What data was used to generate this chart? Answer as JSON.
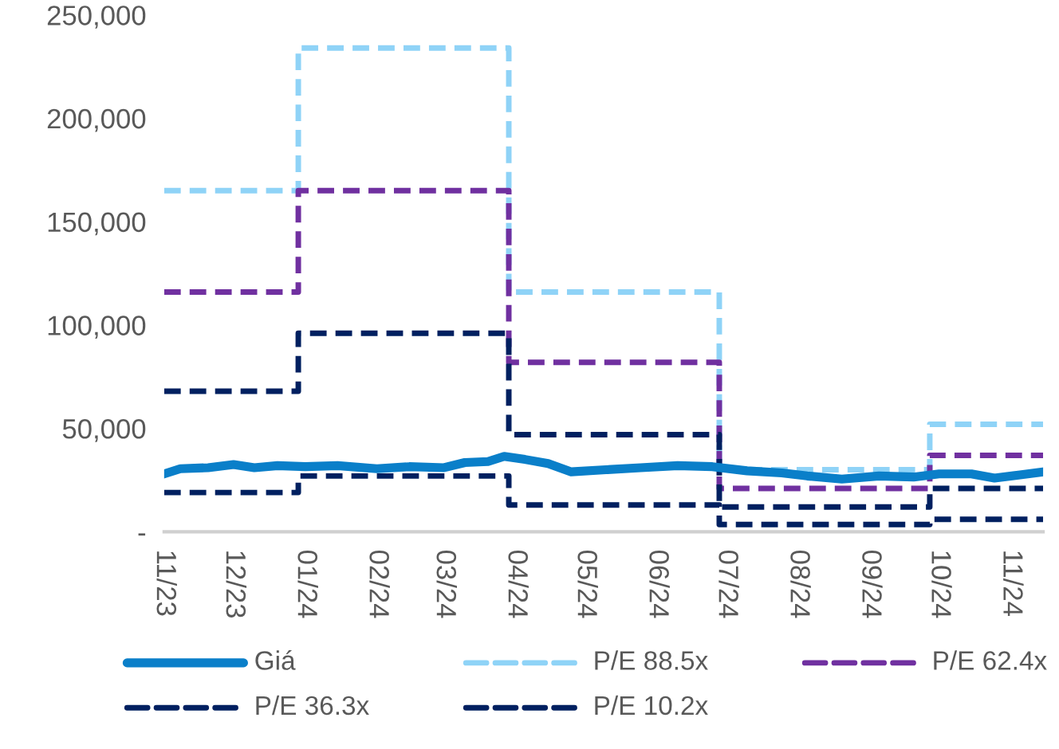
{
  "chart_data": {
    "type": "line",
    "legend": "bottom",
    "grid": false,
    "xlim": [
      "2023-11-01",
      "2024-11-15"
    ],
    "ylim": [
      0,
      250000
    ],
    "yticks": [
      {
        "value": 0,
        "label": "-"
      },
      {
        "value": 50000,
        "label": "50,000"
      },
      {
        "value": 100000,
        "label": "100,000"
      },
      {
        "value": 150000,
        "label": "150,000"
      },
      {
        "value": 200000,
        "label": "200,000"
      },
      {
        "value": 250000,
        "label": "250,000"
      }
    ],
    "xticks": [
      {
        "value": "2023-11-01",
        "label": "11/23"
      },
      {
        "value": "2023-12-01",
        "label": "12/23"
      },
      {
        "value": "2024-01-01",
        "label": "01/24"
      },
      {
        "value": "2024-02-01",
        "label": "02/24"
      },
      {
        "value": "2024-03-01",
        "label": "03/24"
      },
      {
        "value": "2024-04-01",
        "label": "04/24"
      },
      {
        "value": "2024-05-01",
        "label": "05/24"
      },
      {
        "value": "2024-06-01",
        "label": "06/24"
      },
      {
        "value": "2024-07-01",
        "label": "07/24"
      },
      {
        "value": "2024-08-01",
        "label": "08/24"
      },
      {
        "value": "2024-09-01",
        "label": "09/24"
      },
      {
        "value": "2024-10-01",
        "label": "10/24"
      },
      {
        "value": "2024-11-01",
        "label": "11/24"
      }
    ],
    "series": [
      {
        "name": "Giá",
        "type": "line",
        "line_style": "solid",
        "color": "#0a7fc9",
        "x": [
          "2023-11-01",
          "2023-11-08",
          "2023-11-20",
          "2023-12-01",
          "2023-12-10",
          "2023-12-20",
          "2024-01-01",
          "2024-01-15",
          "2024-02-01",
          "2024-02-15",
          "2024-03-01",
          "2024-03-10",
          "2024-03-20",
          "2024-03-27",
          "2024-04-05",
          "2024-04-15",
          "2024-04-25",
          "2024-05-10",
          "2024-05-25",
          "2024-06-10",
          "2024-06-25",
          "2024-07-10",
          "2024-07-25",
          "2024-08-05",
          "2024-08-20",
          "2024-09-05",
          "2024-09-20",
          "2024-10-01",
          "2024-10-15",
          "2024-10-25",
          "2024-11-05",
          "2024-11-15"
        ],
        "values": [
          28000,
          30500,
          31000,
          32500,
          31000,
          32000,
          31500,
          32000,
          30500,
          31500,
          31000,
          33500,
          34000,
          36500,
          35000,
          33000,
          29000,
          30000,
          31000,
          32000,
          31500,
          29500,
          28500,
          27000,
          25500,
          27000,
          26500,
          28000,
          28000,
          26000,
          27500,
          29000
        ]
      },
      {
        "name": "P/E 88.5x",
        "type": "step",
        "line_style": "dashed",
        "color": "#8fd3f7",
        "x": [
          "2023-11-01",
          "2023-12-29",
          "2024-03-29",
          "2024-06-28",
          "2024-09-27",
          "2024-11-15"
        ],
        "values": [
          165000,
          234000,
          116000,
          30000,
          52000,
          52000
        ]
      },
      {
        "name": "P/E 62.4x",
        "type": "step",
        "line_style": "dashed",
        "color": "#7030a0",
        "x": [
          "2023-11-01",
          "2023-12-29",
          "2024-03-29",
          "2024-06-28",
          "2024-09-27",
          "2024-11-15"
        ],
        "values": [
          116000,
          165000,
          82000,
          21000,
          37000,
          37000
        ]
      },
      {
        "name": "P/E 36.3x",
        "type": "step",
        "line_style": "dashed",
        "color": "#002060",
        "x": [
          "2023-11-01",
          "2023-12-29",
          "2024-03-29",
          "2024-06-28",
          "2024-09-27",
          "2024-11-15"
        ],
        "values": [
          68000,
          96000,
          47000,
          12000,
          21000,
          21000
        ]
      },
      {
        "name": "P/E 10.2x",
        "type": "step",
        "line_style": "dashed",
        "color": "#002060",
        "x": [
          "2023-11-01",
          "2023-12-29",
          "2024-03-29",
          "2024-06-28",
          "2024-09-27",
          "2024-11-15"
        ],
        "values": [
          19000,
          27000,
          13000,
          3500,
          6000,
          6000
        ]
      }
    ]
  }
}
